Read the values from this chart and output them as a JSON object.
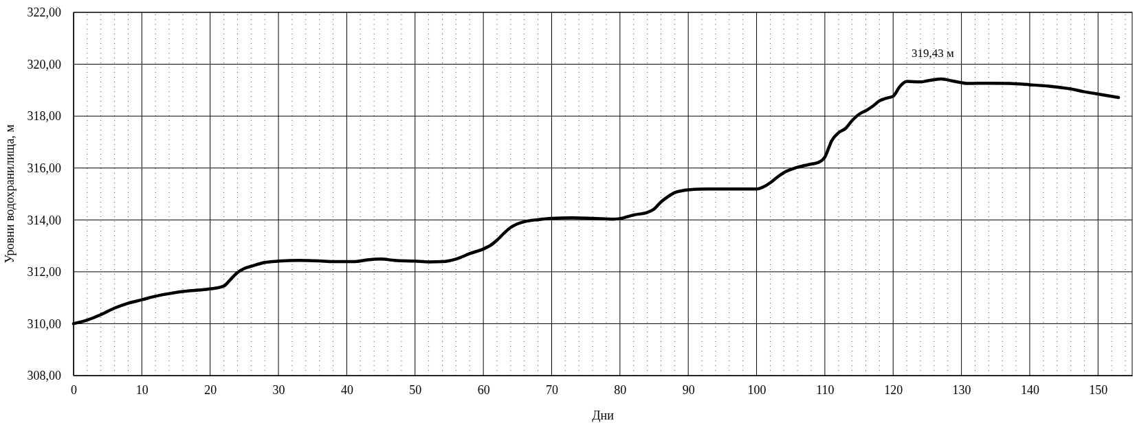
{
  "chart_data": {
    "type": "line",
    "xlabel": "Дни",
    "ylabel": "Уровни водохранилища, м",
    "xlim": [
      0,
      155
    ],
    "ylim": [
      308,
      322
    ],
    "xticks": [
      0,
      {
        "value": 2,
        "label": null
      },
      {
        "value": 4,
        "label": null
      },
      {
        "value": 6,
        "label": null
      },
      {
        "value": 8,
        "label": null
      },
      10,
      {
        "value": 12,
        "label": null
      },
      {
        "value": 14,
        "label": null
      },
      {
        "value": 16,
        "label": null
      },
      {
        "value": 18,
        "label": null
      },
      20,
      {
        "value": 22,
        "label": null
      },
      {
        "value": 24,
        "label": null
      },
      {
        "value": 26,
        "label": null
      },
      {
        "value": 28,
        "label": null
      },
      30,
      {
        "value": 32,
        "label": null
      },
      {
        "value": 34,
        "label": null
      },
      {
        "value": 36,
        "label": null
      },
      {
        "value": 38,
        "label": null
      },
      40,
      {
        "value": 42,
        "label": null
      },
      {
        "value": 44,
        "label": null
      },
      {
        "value": 46,
        "label": null
      },
      {
        "value": 48,
        "label": null
      },
      50,
      {
        "value": 52,
        "label": null
      },
      {
        "value": 54,
        "label": null
      },
      {
        "value": 56,
        "label": null
      },
      {
        "value": 58,
        "label": null
      },
      60,
      {
        "value": 62,
        "label": null
      },
      {
        "value": 64,
        "label": null
      },
      {
        "value": 66,
        "label": null
      },
      {
        "value": 68,
        "label": null
      },
      70,
      {
        "value": 72,
        "label": null
      },
      {
        "value": 74,
        "label": null
      },
      {
        "value": 76,
        "label": null
      },
      {
        "value": 78,
        "label": null
      },
      80,
      {
        "value": 82,
        "label": null
      },
      {
        "value": 84,
        "label": null
      },
      {
        "value": 86,
        "label": null
      },
      {
        "value": 88,
        "label": null
      },
      90,
      {
        "value": 92,
        "label": null
      },
      {
        "value": 94,
        "label": null
      },
      {
        "value": 96,
        "label": null
      },
      {
        "value": 98,
        "label": null
      },
      100,
      {
        "value": 102,
        "label": null
      },
      {
        "value": 104,
        "label": null
      },
      {
        "value": 106,
        "label": null
      },
      {
        "value": 108,
        "label": null
      },
      110,
      {
        "value": 112,
        "label": null
      },
      {
        "value": 114,
        "label": null
      },
      {
        "value": 116,
        "label": null
      },
      {
        "value": 118,
        "label": null
      },
      120,
      {
        "value": 122,
        "label": null
      },
      {
        "value": 124,
        "label": null
      },
      {
        "value": 126,
        "label": null
      },
      {
        "value": 128,
        "label": null
      },
      130,
      {
        "value": 132,
        "label": null
      },
      {
        "value": 134,
        "label": null
      },
      {
        "value": 136,
        "label": null
      },
      {
        "value": 138,
        "label": null
      },
      140,
      {
        "value": 142,
        "label": null
      },
      {
        "value": 144,
        "label": null
      },
      {
        "value": 146,
        "label": null
      },
      {
        "value": 148,
        "label": null
      },
      150,
      {
        "value": 152,
        "label": null
      },
      {
        "value": 154,
        "label": null
      }
    ],
    "yticks": [
      {
        "value": 308,
        "label": "308,00"
      },
      {
        "value": 310,
        "label": "310,00"
      },
      {
        "value": 312,
        "label": "312,00"
      },
      {
        "value": 314,
        "label": "314,00"
      },
      {
        "value": 316,
        "label": "316,00"
      },
      {
        "value": 318,
        "label": "318,00"
      },
      {
        "value": 320,
        "label": "320,00"
      },
      {
        "value": 322,
        "label": "322,00"
      }
    ],
    "grid": true,
    "line_style": "solid",
    "x": [
      0,
      2,
      4,
      6,
      8,
      10,
      12,
      14,
      16,
      18,
      20,
      22,
      23,
      24,
      25,
      26,
      28,
      30,
      33,
      36,
      38,
      41,
      43,
      45,
      47,
      50,
      52,
      54,
      56,
      58,
      60,
      61,
      62,
      63,
      64,
      65,
      66,
      68,
      70,
      73,
      76,
      79,
      80,
      82,
      84,
      85,
      86,
      87,
      88,
      89,
      90,
      93,
      96,
      100,
      101,
      102,
      103,
      104,
      106,
      108,
      109,
      110,
      111,
      112,
      113,
      114,
      115,
      116,
      117,
      118,
      119,
      120,
      121,
      122,
      124,
      125,
      127,
      129,
      131,
      134,
      137,
      140,
      143,
      146,
      148,
      150,
      153
    ],
    "series": [
      {
        "color": "#000000",
        "values": [
          310.0,
          310.14,
          310.35,
          310.6,
          310.79,
          310.92,
          311.06,
          311.16,
          311.24,
          311.29,
          311.34,
          311.45,
          311.71,
          311.97,
          312.13,
          312.21,
          312.36,
          312.41,
          312.44,
          312.42,
          312.39,
          312.39,
          312.46,
          312.49,
          312.44,
          312.41,
          312.38,
          312.39,
          312.49,
          312.7,
          312.88,
          313.01,
          313.22,
          313.48,
          313.71,
          313.85,
          313.93,
          314.01,
          314.06,
          314.08,
          314.06,
          314.03,
          314.05,
          314.19,
          314.29,
          314.42,
          314.69,
          314.89,
          315.05,
          315.12,
          315.16,
          315.19,
          315.19,
          315.19,
          315.27,
          315.43,
          315.64,
          315.82,
          316.03,
          316.15,
          316.21,
          316.42,
          317.05,
          317.36,
          317.52,
          317.83,
          318.07,
          318.21,
          318.38,
          318.59,
          318.69,
          318.77,
          319.15,
          319.34,
          319.32,
          319.36,
          319.43,
          319.34,
          319.26,
          319.27,
          319.26,
          319.21,
          319.15,
          319.05,
          318.94,
          318.85,
          318.72
        ]
      }
    ],
    "annotations": [
      {
        "text": "319,43 м",
        "x": 127,
        "y": 319.43
      }
    ]
  }
}
